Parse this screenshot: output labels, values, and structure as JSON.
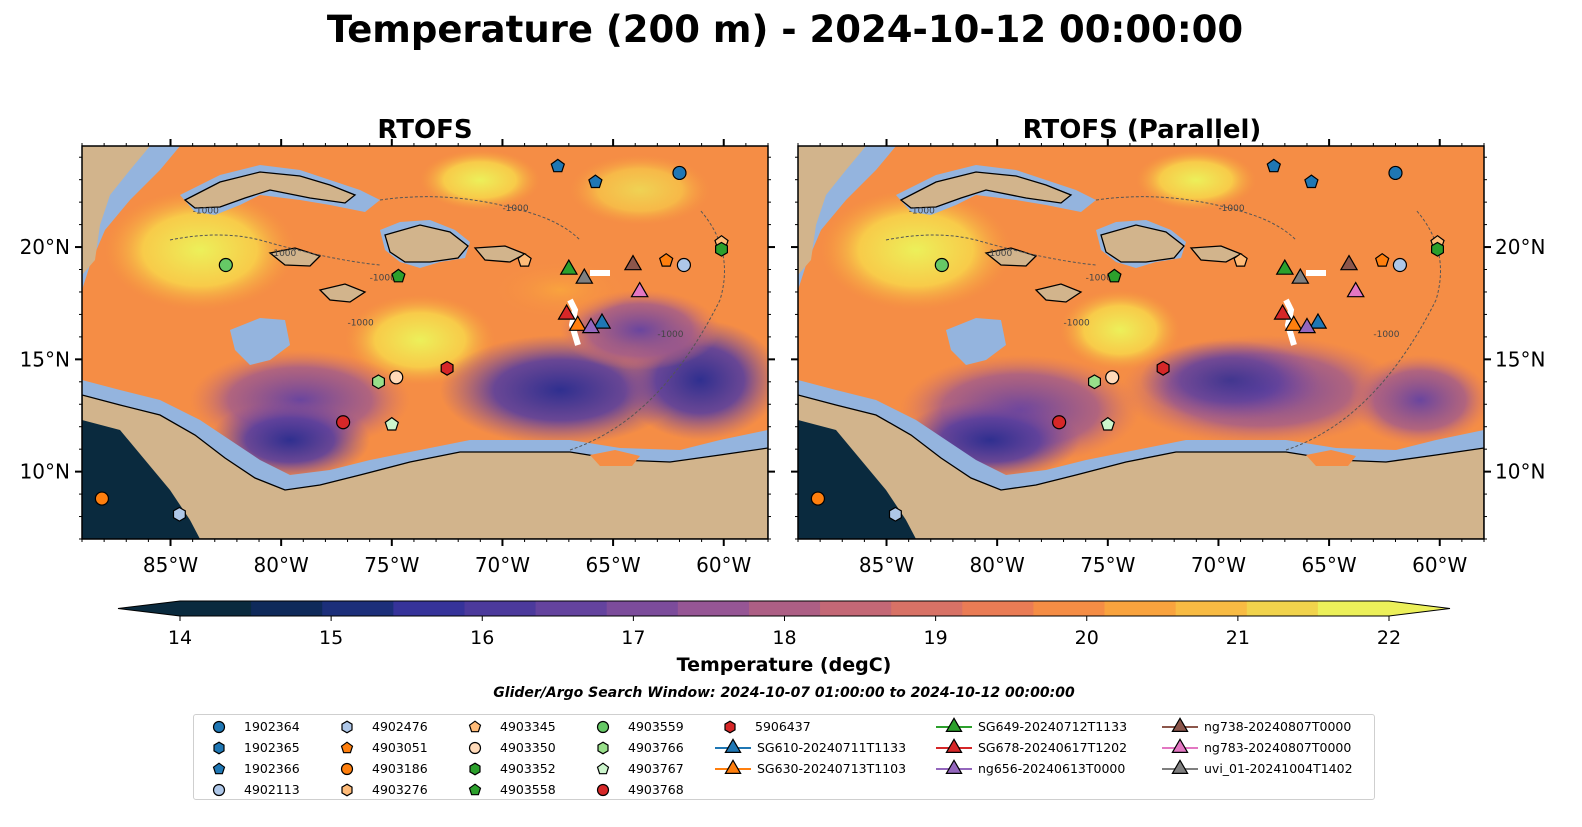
{
  "suptitle": "Temperature (200 m) - 2024-10-12 00:00:00",
  "panels": [
    {
      "title": "RTOFS"
    },
    {
      "title": "RTOFS (Parallel)"
    }
  ],
  "colorbar": {
    "label": "Temperature (degC)",
    "ticks": [
      "14",
      "15",
      "16",
      "17",
      "18",
      "19",
      "20",
      "21",
      "22"
    ],
    "colors": [
      "#0a2a3e",
      "#0f2a5a",
      "#1c2f7a",
      "#36339a",
      "#4c3a9c",
      "#64439e",
      "#7c4c9b",
      "#965695",
      "#ad5f85",
      "#c46876",
      "#d87266",
      "#ea7c55",
      "#f58d45",
      "#f9a33e",
      "#f8bb43",
      "#f1d34c",
      "#ecf05a"
    ],
    "extend": "both"
  },
  "search_window": "Glider/Argo Search Window: 2024-10-07 01:00:00 to 2024-10-12 00:00:00",
  "map": {
    "land_color": "#d2b48c",
    "shelf_color": "#94b4de",
    "contour_label": "-1000",
    "x_ticks": [
      "85°W",
      "80°W",
      "75°W",
      "70°W",
      "65°W",
      "60°W"
    ],
    "y_ticks": [
      "20°N",
      "15°N",
      "10°N"
    ],
    "lon_range": [
      -89,
      -58
    ],
    "lat_range": [
      7,
      24.5
    ]
  },
  "chart_data": {
    "type": "scatter",
    "title": "Temperature (200 m) - 2024-10-12 00:00:00",
    "xlabel": "",
    "ylabel": "",
    "xlim": [
      -89,
      -58
    ],
    "ylim": [
      7,
      24.5
    ],
    "series": [
      {
        "name": "1902364",
        "marker": "circle",
        "color": "#1f77b4",
        "points": [
          [
            -62,
            23.3
          ]
        ]
      },
      {
        "name": "1902365",
        "marker": "hexagon",
        "color": "#1f77b4",
        "points": []
      },
      {
        "name": "1902366",
        "marker": "pentagon",
        "color": "#1f77b4",
        "points": [
          [
            -67.5,
            23.6
          ],
          [
            -65.8,
            22.9
          ]
        ]
      },
      {
        "name": "4902113",
        "marker": "circle",
        "color": "#aec7e8",
        "points": [
          [
            -61.8,
            19.2
          ]
        ]
      },
      {
        "name": "4902476",
        "marker": "hexagon",
        "color": "#aec7e8",
        "points": [
          [
            -84.6,
            8.1
          ]
        ]
      },
      {
        "name": "4903051",
        "marker": "pentagon",
        "color": "#ff7f0e",
        "points": [
          [
            -62.6,
            19.4
          ]
        ]
      },
      {
        "name": "4903186",
        "marker": "circle",
        "color": "#ff7f0e",
        "points": [
          [
            -88.1,
            8.8
          ]
        ]
      },
      {
        "name": "4903276",
        "marker": "hexagon",
        "color": "#ffbb78",
        "points": []
      },
      {
        "name": "4903345",
        "marker": "pentagon",
        "color": "#ffbb78",
        "points": [
          [
            -69,
            19.4
          ],
          [
            -60.1,
            20.2
          ]
        ]
      },
      {
        "name": "4903350",
        "marker": "circle",
        "color": "#ffdab9",
        "points": [
          [
            -74.8,
            14.2
          ]
        ]
      },
      {
        "name": "4903352",
        "marker": "hexagon",
        "color": "#2ca02c",
        "points": [
          [
            -60.1,
            19.9
          ]
        ]
      },
      {
        "name": "4903558",
        "marker": "pentagon",
        "color": "#2ca02c",
        "points": [
          [
            -74.7,
            18.7
          ]
        ]
      },
      {
        "name": "4903559",
        "marker": "circle",
        "color": "#66c966",
        "points": [
          [
            -82.5,
            19.2
          ]
        ]
      },
      {
        "name": "4903766",
        "marker": "hexagon",
        "color": "#98df8a",
        "points": [
          [
            -75.6,
            14
          ]
        ]
      },
      {
        "name": "4903767",
        "marker": "pentagon",
        "color": "#ccf5cc",
        "points": [
          [
            -75,
            12.1
          ]
        ]
      },
      {
        "name": "4903768",
        "marker": "circle",
        "color": "#d62728",
        "points": [
          [
            -77.2,
            12.2
          ]
        ]
      },
      {
        "name": "5906437",
        "marker": "hexagon",
        "color": "#d62728",
        "points": [
          [
            -72.5,
            14.6
          ]
        ]
      },
      {
        "name": "SG610-20240711T1133",
        "marker": "triangle",
        "color": "#1f77b4",
        "line": true,
        "points": [
          [
            -65.5,
            16.6
          ]
        ]
      },
      {
        "name": "SG630-20240713T1103",
        "marker": "triangle",
        "color": "#ff7f0e",
        "line": true,
        "points": [
          [
            -66.6,
            16.5
          ]
        ]
      },
      {
        "name": "SG649-20240712T1133",
        "marker": "triangle",
        "color": "#2ca02c",
        "line": true,
        "points": [
          [
            -67,
            19
          ]
        ]
      },
      {
        "name": "SG678-20240617T1202",
        "marker": "triangle",
        "color": "#d62728",
        "line": true,
        "points": [
          [
            -67.1,
            17
          ]
        ]
      },
      {
        "name": "ng656-20240613T0000",
        "marker": "triangle",
        "color": "#9467bd",
        "line": true,
        "points": [
          [
            -66,
            16.4
          ]
        ]
      },
      {
        "name": "ng738-20240807T0000",
        "marker": "triangle",
        "color": "#8c564b",
        "line": true,
        "points": [
          [
            -64.1,
            19.2
          ]
        ]
      },
      {
        "name": "ng783-20240807T0000",
        "marker": "triangle",
        "color": "#e377c2",
        "line": true,
        "points": [
          [
            -63.8,
            18
          ]
        ]
      },
      {
        "name": "uvi_01-20241004T1402",
        "marker": "triangle",
        "color": "#7f7f7f",
        "line": true,
        "points": [
          [
            -66.3,
            18.6
          ]
        ]
      }
    ]
  }
}
